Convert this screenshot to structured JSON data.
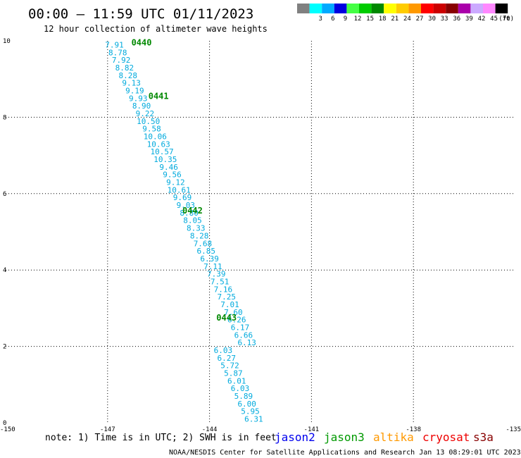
{
  "chart_data": {
    "type": "scatter",
    "title": "00:00 – 11:59 UTC 01/11/2023",
    "subtitle": "12 hour collection of altimeter wave heights",
    "xlabel": "",
    "ylabel": "",
    "xlim": [
      -150,
      -135
    ],
    "ylim": [
      0,
      10
    ],
    "x_ticks": [
      "-150",
      "-147",
      "-144",
      "-141",
      "-138",
      "-135"
    ],
    "y_ticks": [
      "0",
      "2",
      "4",
      "6",
      "8",
      "10"
    ],
    "grid": true,
    "legend_scale": {
      "label": "(ft)",
      "bins": [
        {
          "label": "",
          "color": "#808080"
        },
        {
          "label": "3",
          "color": "#00ffff"
        },
        {
          "label": "6",
          "color": "#00aaff"
        },
        {
          "label": "9",
          "color": "#0000e0"
        },
        {
          "label": "12",
          "color": "#44ff44"
        },
        {
          "label": "15",
          "color": "#00cc00"
        },
        {
          "label": "18",
          "color": "#008800"
        },
        {
          "label": "21",
          "color": "#ffff00"
        },
        {
          "label": "24",
          "color": "#ffcc00"
        },
        {
          "label": "27",
          "color": "#ff9900"
        },
        {
          "label": "30",
          "color": "#ff0000"
        },
        {
          "label": "33",
          "color": "#cc0000"
        },
        {
          "label": "36",
          "color": "#880000"
        },
        {
          "label": "39",
          "color": "#aa00aa"
        },
        {
          "label": "42",
          "color": "#ccaaff"
        },
        {
          "label": "45",
          "color": "#ff88ff"
        },
        {
          "label": "70",
          "color": "#000000"
        }
      ]
    },
    "series": [
      {
        "color": "#00aadd",
        "x": [
          -146.8,
          -146.7,
          -146.6,
          -146.5,
          -146.4,
          -146.3,
          -146.2,
          -146.1,
          -146.0,
          -145.9,
          -145.8,
          -145.7,
          -145.6,
          -145.5,
          -145.4,
          -145.3,
          -145.2,
          -145.1,
          -145.0,
          -144.9,
          -144.8,
          -144.7,
          -144.6,
          -144.5,
          -144.4,
          -144.3,
          -144.2,
          -144.1,
          -144.0,
          -143.9,
          -143.8,
          -143.7,
          -143.6,
          -143.5,
          -143.4,
          -143.3,
          -143.2,
          -143.1,
          -143.0,
          -142.9
        ],
        "y": [
          9.9,
          9.7,
          9.5,
          9.3,
          9.1,
          8.9,
          8.7,
          8.5,
          8.3,
          8.1,
          7.9,
          7.7,
          7.5,
          7.3,
          7.1,
          6.9,
          6.7,
          6.5,
          6.3,
          6.1,
          5.9,
          5.7,
          5.5,
          5.3,
          5.1,
          4.9,
          4.7,
          4.5,
          4.3,
          4.1,
          3.9,
          3.7,
          3.5,
          3.3,
          3.1,
          2.9,
          2.7,
          2.5,
          2.3,
          2.1
        ],
        "values": [
          "7.91",
          "8.78",
          "7.92",
          "8.82",
          "8.28",
          "9.13",
          "9.19",
          "9.93",
          "8.90",
          "9.22",
          "10.50",
          "9.58",
          "10.06",
          "10.63",
          "10.57",
          "10.35",
          "9.46",
          "9.56",
          "9.12",
          "10.61",
          "9.69",
          "9.03",
          "8.80",
          "8.05",
          "8.33",
          "8.28",
          "7.68",
          "6.85",
          "6.39",
          "7.11",
          "7.39",
          "7.51",
          "7.16",
          "7.25",
          "7.01",
          "7.60",
          "6.26",
          "6.17",
          "6.66",
          "6.13"
        ]
      },
      {
        "color": "#00aadd",
        "x": [
          -143.6,
          -143.5,
          -143.4,
          -143.3,
          -143.2,
          -143.1,
          -143.0,
          -142.9,
          -142.8,
          -142.7,
          -142.6
        ],
        "y": [
          1.9,
          1.7,
          1.5,
          1.3,
          1.1,
          0.9,
          0.7,
          0.5,
          0.3,
          0.1,
          -0.1
        ],
        "values": [
          "6.03",
          "6.27",
          "5.72",
          "5.87",
          "6.01",
          "6.03",
          "5.89",
          "6.00",
          "5.95",
          "6.31",
          ""
        ]
      }
    ],
    "annotations": [
      {
        "text": "0440",
        "x": -146.3,
        "y": 9.95,
        "color": "#008800"
      },
      {
        "text": "0441",
        "x": -145.8,
        "y": 8.55,
        "color": "#008800"
      },
      {
        "text": "0442",
        "x": -144.8,
        "y": 5.55,
        "color": "#008800"
      },
      {
        "text": "0443",
        "x": -143.8,
        "y": 2.75,
        "color": "#008800"
      }
    ]
  },
  "note": "note: 1) Time is in UTC; 2) SWH is in feet",
  "satellites": [
    {
      "name": "jason2",
      "color": "#0000ee"
    },
    {
      "name": "jason3",
      "color": "#009900"
    },
    {
      "name": "altika",
      "color": "#ff9900"
    },
    {
      "name": "cryosat",
      "color": "#ee0000"
    },
    {
      "name": "s3a",
      "color": "#880000"
    }
  ],
  "footer": "NOAA/NESDIS Center for Satellite Applications and Research   Jan 13 08:29:01 UTC 2023"
}
